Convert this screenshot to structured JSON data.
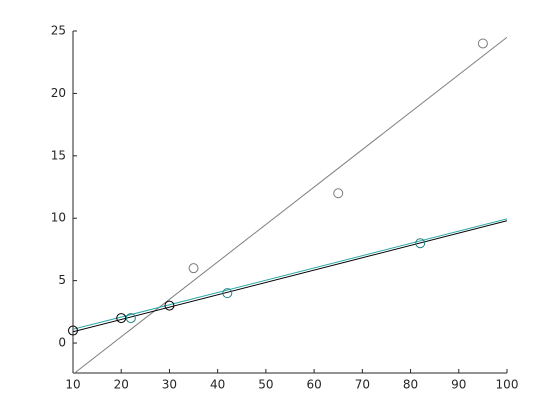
{
  "chart_data": {
    "type": "scatter",
    "xlim": [
      10,
      100
    ],
    "xticks": [
      10,
      20,
      30,
      40,
      50,
      60,
      70,
      80,
      90,
      100
    ],
    "ylim": [
      -2.4,
      25
    ],
    "yticks": [
      0,
      5,
      10,
      15,
      20,
      25
    ],
    "series": [
      {
        "mode": "line",
        "color": "#808080",
        "x": [
          10,
          100
        ],
        "values": [
          -2.5,
          24.5
        ]
      },
      {
        "mode": "line",
        "color": "#000000",
        "x": [
          10,
          100
        ],
        "values": [
          0.9,
          9.8
        ]
      },
      {
        "mode": "line",
        "color": "#2aa8a8",
        "x": [
          10,
          100
        ],
        "values": [
          1.1,
          9.95
        ]
      },
      {
        "mode": "markers",
        "color": "#7a7a7a",
        "x": [
          35,
          65,
          95
        ],
        "values": [
          6,
          12,
          24
        ]
      },
      {
        "mode": "markers",
        "color": "#000000",
        "x": [
          10,
          20,
          30
        ],
        "values": [
          1,
          2,
          3
        ]
      },
      {
        "mode": "markers",
        "color": "#1f8080",
        "x": [
          22,
          42,
          82
        ],
        "values": [
          2,
          4,
          8
        ]
      }
    ]
  }
}
